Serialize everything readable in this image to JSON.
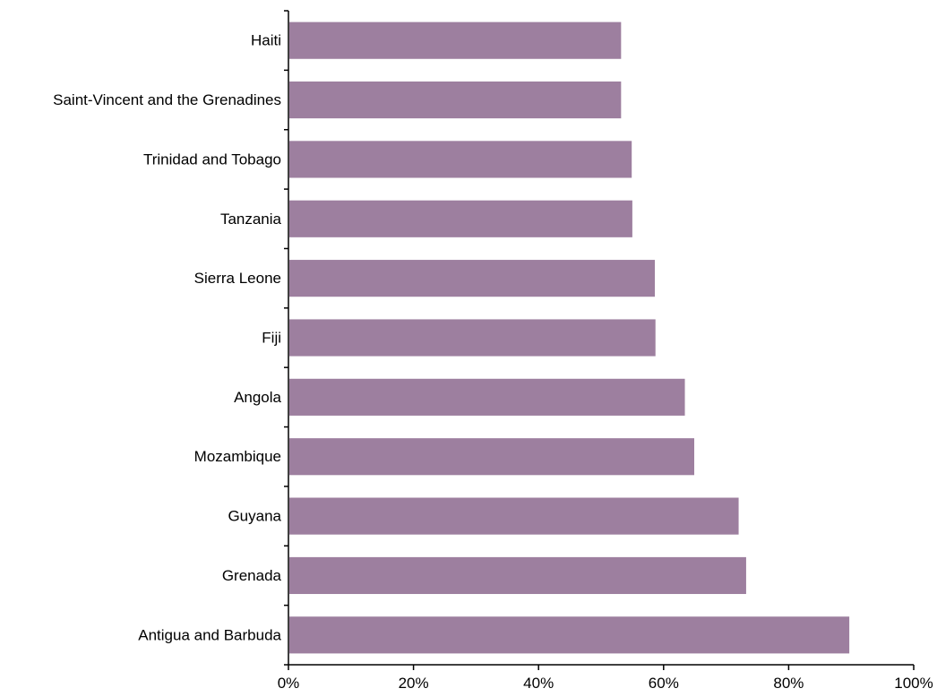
{
  "chart_data": {
    "type": "bar",
    "orientation": "horizontal",
    "categories": [
      "Haiti",
      "Saint-Vincent and the Grenadines",
      "Trinidad and Tobago",
      "Tanzania",
      "Sierra Leone",
      "Fiji",
      "Angola",
      "Mozambique",
      "Guyana",
      "Grenada",
      "Antigua and Barbuda"
    ],
    "values": [
      53.2,
      53.2,
      54.9,
      55.0,
      58.6,
      58.7,
      63.4,
      64.9,
      72.0,
      73.2,
      89.7
    ],
    "xlim": [
      0,
      100
    ],
    "xticks": [
      "0%",
      "20%",
      "40%",
      "60%",
      "80%",
      "100%"
    ],
    "title": "",
    "xlabel": "",
    "ylabel": "",
    "grid": false,
    "legend": "none",
    "bar_color": "#9d7f9f"
  }
}
